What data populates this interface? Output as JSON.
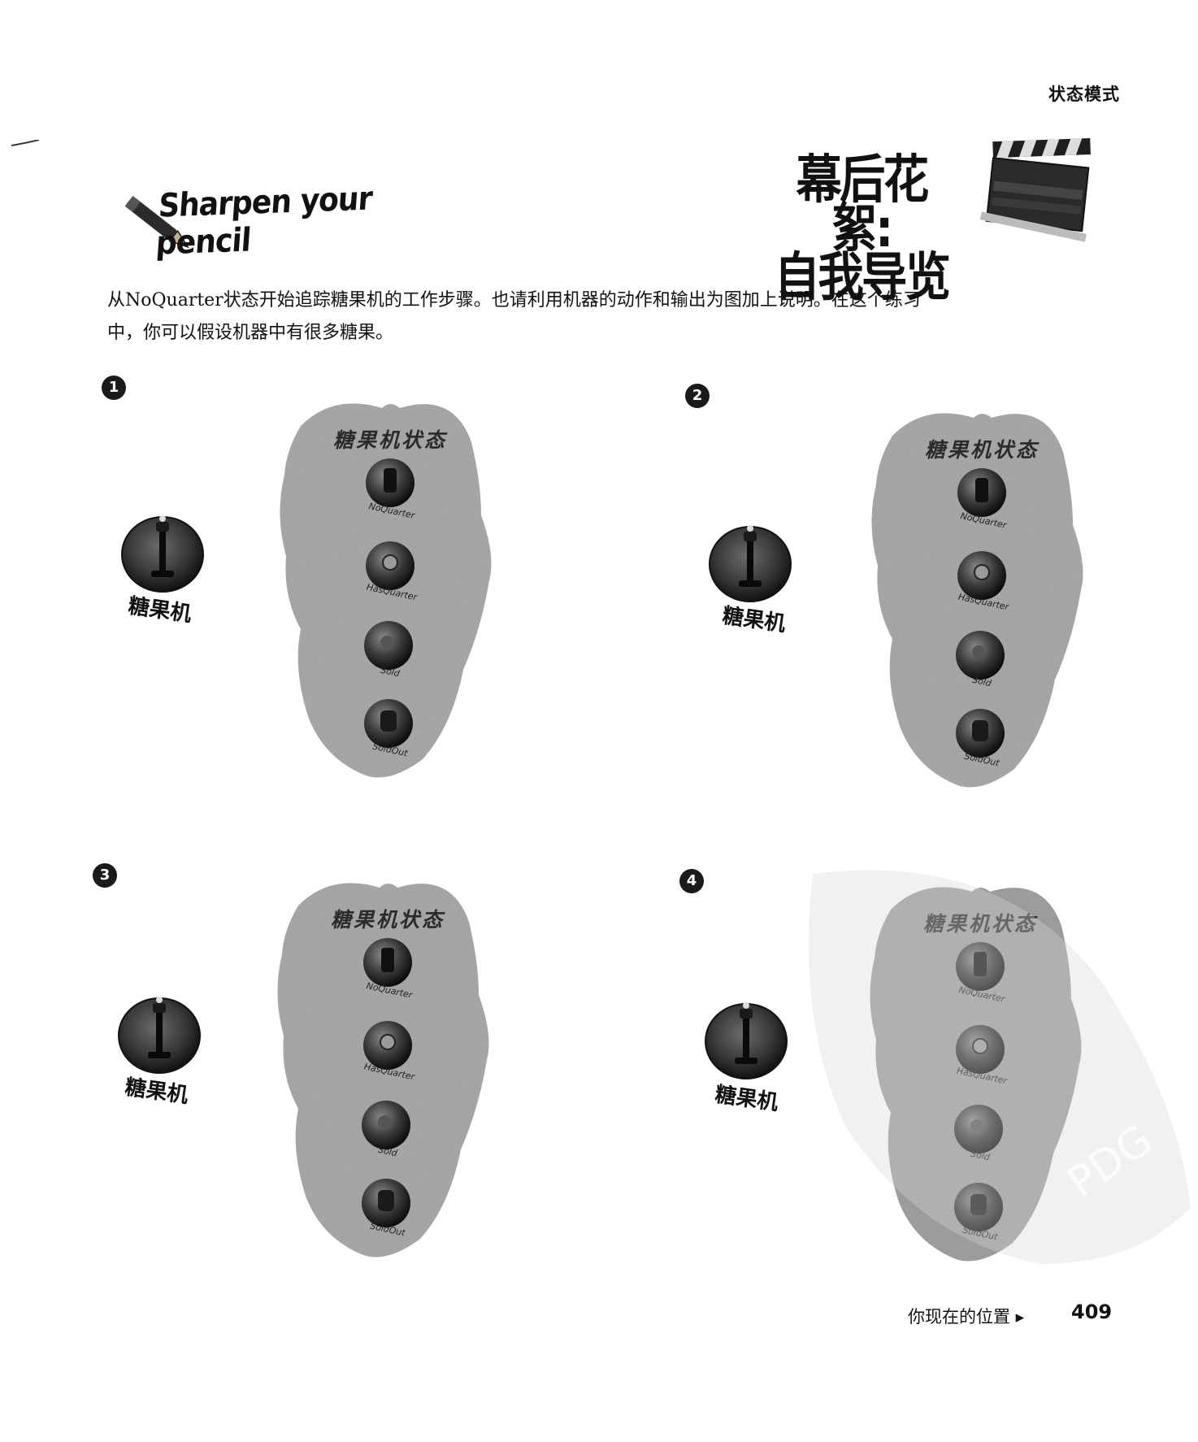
{
  "header": {
    "section_label": "状态模式"
  },
  "sharpen": {
    "label": "Sharpen your pencil"
  },
  "title": {
    "line1": "幕后花絮:",
    "line2": "自我导览"
  },
  "intro": {
    "line1": "从NoQuarter状态开始追踪糖果机的工作步骤。也请利用机器的动作和输出为图加上说明。在这个练习",
    "line2": "中，你可以假设机器中有很多糖果。"
  },
  "steps": [
    {
      "number": "1",
      "machine_label": "糖果机",
      "panel_title": "糖果机状态",
      "states": [
        "NoQuarter",
        "HasQuarter",
        "Sold",
        "SoldOut"
      ]
    },
    {
      "number": "2",
      "machine_label": "糖果机",
      "panel_title": "糖果机状态",
      "states": [
        "NoQuarter",
        "HasQuarter",
        "Sold",
        "SoldOut"
      ]
    },
    {
      "number": "3",
      "machine_label": "糖果机",
      "panel_title": "糖果机状态",
      "states": [
        "NoQuarter",
        "HasQuarter",
        "Sold",
        "SoldOut"
      ]
    },
    {
      "number": "4",
      "machine_label": "糖果机",
      "panel_title": "糖果机状态",
      "states": [
        "NoQuarter",
        "HasQuarter",
        "Sold",
        "SoldOut"
      ]
    }
  ],
  "footer": {
    "nav_label": "你现在的位置 ▸",
    "page_number": "409"
  },
  "watermark": {
    "text": "PDG"
  }
}
